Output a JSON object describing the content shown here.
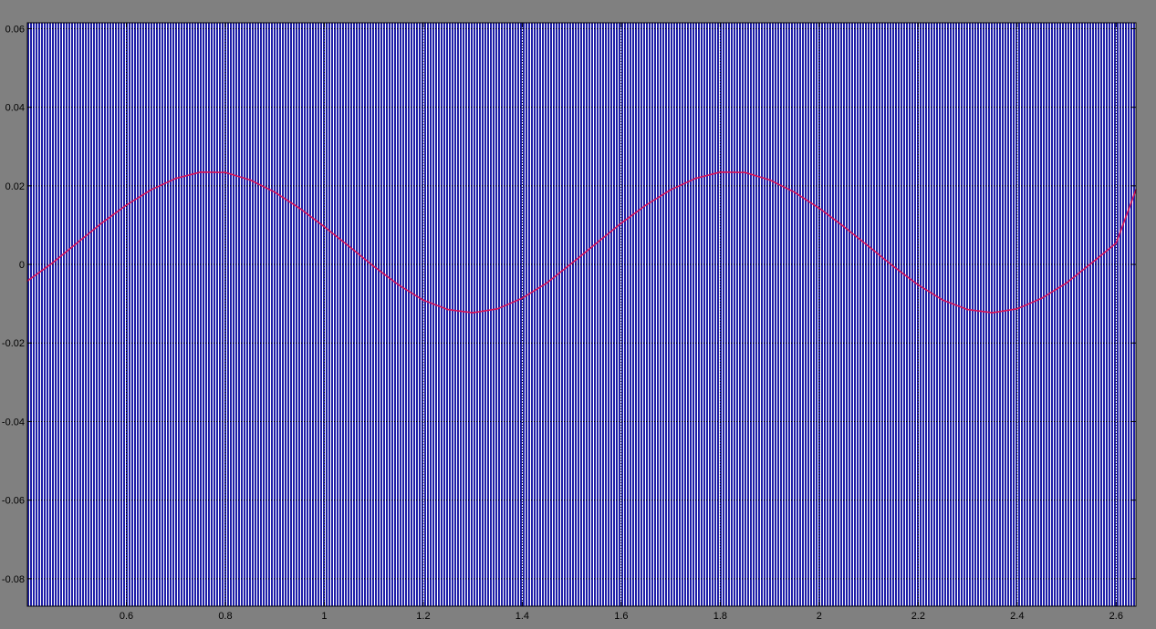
{
  "colors": {
    "background": "#808080",
    "plot_area": "#FFFFFF",
    "hatch": "#1F1FA8",
    "grid": "#000000",
    "signal": "#D4145A"
  },
  "chart_data": {
    "type": "line",
    "title": "",
    "xlabel": "",
    "ylabel": "",
    "xlim": [
      0.4,
      2.64
    ],
    "ylim": [
      -0.087,
      0.0615
    ],
    "grid": true,
    "x_ticks": [
      {
        "value": 0.6,
        "label": "0.6"
      },
      {
        "value": 0.8,
        "label": "0.8"
      },
      {
        "value": 1.0,
        "label": "1"
      },
      {
        "value": 1.2,
        "label": "1.2"
      },
      {
        "value": 1.4,
        "label": "1.4"
      },
      {
        "value": 1.6,
        "label": "1.6"
      },
      {
        "value": 1.8,
        "label": "1.8"
      },
      {
        "value": 2.0,
        "label": "2"
      },
      {
        "value": 2.2,
        "label": "2.2"
      },
      {
        "value": 2.4,
        "label": "2.4"
      },
      {
        "value": 2.6,
        "label": "2.6"
      }
    ],
    "y_ticks": [
      {
        "value": 0.06,
        "label": "0.06"
      },
      {
        "value": 0.04,
        "label": "0.04"
      },
      {
        "value": 0.02,
        "label": "0.02"
      },
      {
        "value": 0.0,
        "label": "0"
      },
      {
        "value": -0.02,
        "label": "-0.02"
      },
      {
        "value": -0.04,
        "label": "-0.04"
      },
      {
        "value": -0.06,
        "label": "-0.06"
      },
      {
        "value": -0.08,
        "label": "-0.08"
      }
    ],
    "series": [
      {
        "color": "#D4145A",
        "x": [
          0.4,
          0.45,
          0.5,
          0.55,
          0.6,
          0.65,
          0.7,
          0.75,
          0.8,
          0.85,
          0.9,
          0.95,
          1.0,
          1.05,
          1.1,
          1.15,
          1.2,
          1.25,
          1.3,
          1.35,
          1.4,
          1.45,
          1.5,
          1.55,
          1.6,
          1.65,
          1.7,
          1.75,
          1.8,
          1.85,
          1.9,
          1.95,
          2.0,
          2.05,
          2.1,
          2.15,
          2.2,
          2.25,
          2.3,
          2.35,
          2.4,
          2.45,
          2.5,
          2.55,
          2.6,
          2.64
        ],
        "y": [
          -0.0042,
          0.0003,
          0.0054,
          0.0105,
          0.0151,
          0.019,
          0.0219,
          0.0235,
          0.0234,
          0.0215,
          0.0184,
          0.0143,
          0.0096,
          0.0046,
          -0.0005,
          -0.0052,
          -0.0091,
          -0.0115,
          -0.0123,
          -0.0113,
          -0.0086,
          -0.0047,
          0.0003,
          0.0054,
          0.0105,
          0.0151,
          0.019,
          0.0219,
          0.0235,
          0.0234,
          0.0215,
          0.0184,
          0.0143,
          0.0096,
          0.0046,
          -0.0005,
          -0.0052,
          -0.0091,
          -0.0115,
          -0.0123,
          -0.0113,
          -0.0086,
          -0.0047,
          0.0003,
          0.0054,
          0.019
        ]
      }
    ]
  }
}
